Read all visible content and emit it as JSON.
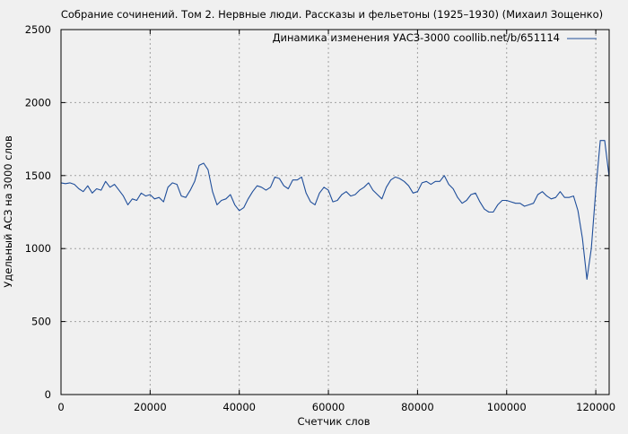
{
  "chart_data": {
    "type": "line",
    "title": "Собрание сочинений. Том 2. Нервные люди. Рассказы и фельетоны (1925–1930) (Михаил Зощенко)",
    "xlabel": "Счетчик слов",
    "ylabel": "Удельный АСЗ на 3000 слов",
    "xlim": [
      0,
      123000
    ],
    "ylim": [
      0,
      2500
    ],
    "xticks": [
      0,
      20000,
      40000,
      60000,
      80000,
      100000,
      120000
    ],
    "yticks": [
      0,
      500,
      1000,
      1500,
      2000,
      2500
    ],
    "grid": true,
    "legend_position": "top-right",
    "series": [
      {
        "name": "Динамика изменения УАСЗ-3000 coollib.net/b/651114",
        "color": "#1f4e9a",
        "x": [
          0,
          1000,
          2000,
          3000,
          4000,
          5000,
          6000,
          7000,
          8000,
          9000,
          10000,
          11000,
          12000,
          13000,
          14000,
          15000,
          16000,
          17000,
          18000,
          19000,
          20000,
          21000,
          22000,
          23000,
          24000,
          25000,
          26000,
          27000,
          28000,
          29000,
          30000,
          31000,
          32000,
          33000,
          34000,
          35000,
          36000,
          37000,
          38000,
          39000,
          40000,
          41000,
          42000,
          43000,
          44000,
          45000,
          46000,
          47000,
          48000,
          49000,
          50000,
          51000,
          52000,
          53000,
          54000,
          55000,
          56000,
          57000,
          58000,
          59000,
          60000,
          61000,
          62000,
          63000,
          64000,
          65000,
          66000,
          67000,
          68000,
          69000,
          70000,
          71000,
          72000,
          73000,
          74000,
          75000,
          76000,
          77000,
          78000,
          79000,
          80000,
          81000,
          82000,
          83000,
          84000,
          85000,
          86000,
          87000,
          88000,
          89000,
          90000,
          91000,
          92000,
          93000,
          94000,
          95000,
          96000,
          97000,
          98000,
          99000,
          100000,
          101000,
          102000,
          103000,
          104000,
          105000,
          106000,
          107000,
          108000,
          109000,
          110000,
          111000,
          112000,
          113000,
          114000,
          115000,
          116000,
          117000,
          118000,
          119000,
          120000,
          121000,
          122000,
          123000
        ],
        "y": [
          1450,
          1445,
          1450,
          1440,
          1410,
          1390,
          1430,
          1380,
          1410,
          1400,
          1460,
          1420,
          1440,
          1400,
          1360,
          1300,
          1340,
          1330,
          1380,
          1360,
          1370,
          1340,
          1350,
          1320,
          1420,
          1450,
          1440,
          1360,
          1350,
          1400,
          1460,
          1570,
          1585,
          1540,
          1390,
          1300,
          1330,
          1340,
          1370,
          1300,
          1260,
          1280,
          1340,
          1390,
          1430,
          1420,
          1400,
          1420,
          1490,
          1480,
          1430,
          1410,
          1470,
          1470,
          1490,
          1380,
          1320,
          1300,
          1380,
          1420,
          1400,
          1320,
          1330,
          1370,
          1390,
          1360,
          1370,
          1400,
          1420,
          1450,
          1400,
          1370,
          1340,
          1420,
          1470,
          1490,
          1480,
          1460,
          1430,
          1380,
          1390,
          1450,
          1460,
          1440,
          1460,
          1460,
          1500,
          1440,
          1410,
          1350,
          1310,
          1330,
          1370,
          1380,
          1320,
          1270,
          1250,
          1250,
          1300,
          1330,
          1330,
          1320,
          1310,
          1310,
          1290,
          1300,
          1310,
          1370,
          1390,
          1360,
          1340,
          1350,
          1390,
          1350,
          1350,
          1360,
          1260,
          1070,
          790,
          1000,
          1400,
          1740,
          1740,
          1490
        ]
      }
    ]
  }
}
